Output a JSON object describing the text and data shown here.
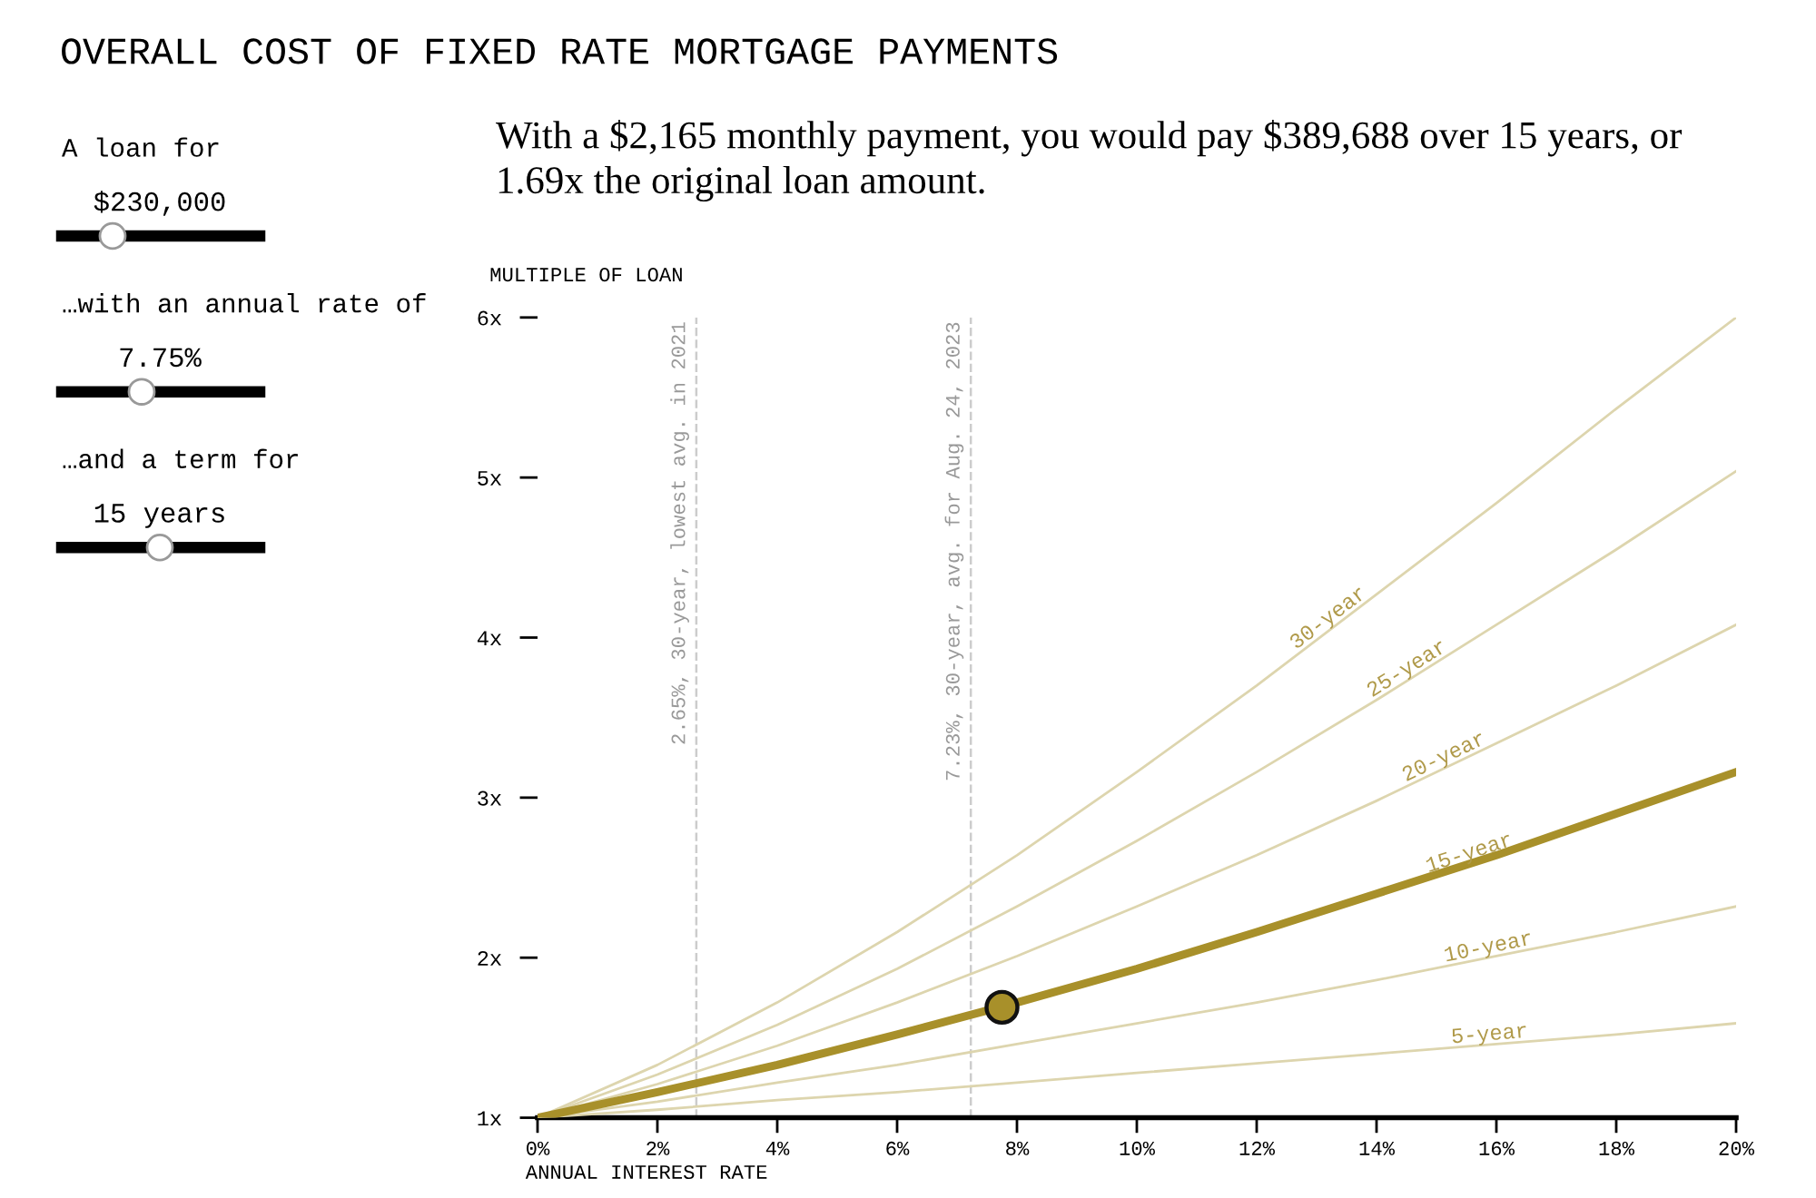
{
  "chart_data": {
    "type": "line",
    "title": "OVERALL COST OF FIXED RATE MORTGAGE PAYMENTS",
    "subtitle": "With a $2,165 monthly payment, you would pay $389,688 over 15 years, or 1.69x the original loan amount.",
    "annotations": [
      "A loan for",
      "$230,000",
      "…with an annual rate of",
      "7.75%",
      "…and a term for",
      "15 years"
    ],
    "xlabel": "ANNUAL INTEREST RATE",
    "ylabel": "MULTIPLE OF LOAN",
    "x": [
      0,
      2,
      4,
      6,
      8,
      10,
      12,
      14,
      16,
      18,
      20
    ],
    "series": [
      {
        "name": "30-year",
        "color": "#ddd5ae",
        "values": [
          1,
          1.33,
          1.72,
          2.16,
          2.64,
          3.16,
          3.7,
          4.27,
          4.84,
          5.43,
          6.0
        ]
      },
      {
        "name": "25-year",
        "color": "#ddd5ae",
        "values": [
          1,
          1.27,
          1.58,
          1.93,
          2.32,
          2.73,
          3.16,
          3.61,
          4.08,
          4.55,
          5.04
        ]
      },
      {
        "name": "20-year",
        "color": "#ddd5ae",
        "values": [
          1,
          1.21,
          1.45,
          1.72,
          2.01,
          2.32,
          2.64,
          2.98,
          3.34,
          3.7,
          4.08
        ]
      },
      {
        "name": "15-year",
        "color": "#a8902a",
        "values": [
          1,
          1.16,
          1.33,
          1.52,
          1.72,
          1.93,
          2.16,
          2.4,
          2.64,
          2.9,
          3.16
        ]
      },
      {
        "name": "10-year",
        "color": "#ddd5ae",
        "values": [
          1,
          1.1,
          1.22,
          1.33,
          1.46,
          1.59,
          1.72,
          1.86,
          2.01,
          2.16,
          2.32
        ]
      },
      {
        "name": "5-year",
        "color": "#ddd5ae",
        "values": [
          1,
          1.05,
          1.11,
          1.16,
          1.22,
          1.28,
          1.34,
          1.4,
          1.46,
          1.52,
          1.59
        ]
      },
      {
        "type": "scatter",
        "marker": "circle",
        "color": "#a8902a",
        "x": [
          7.75
        ],
        "values": [
          1.69
        ]
      }
    ],
    "ref_lines": [
      {
        "axis": "x",
        "value": 2.65,
        "label": "2.65%, 30-year, lowest avg. in 2021",
        "color": "#cccccc",
        "line_style": "dashed"
      },
      {
        "axis": "x",
        "value": 7.23,
        "label": "7.23%, 30-year, avg. for Aug. 24, 2023",
        "color": "#cccccc",
        "line_style": "dashed"
      }
    ],
    "xlim": [
      0,
      20
    ],
    "xticks": [
      {
        "value": 0,
        "label": "0%"
      },
      {
        "value": 2,
        "label": "2%"
      },
      {
        "value": 4,
        "label": "4%"
      },
      {
        "value": 6,
        "label": "6%"
      },
      {
        "value": 8,
        "label": "8%"
      },
      {
        "value": 10,
        "label": "10%"
      },
      {
        "value": 12,
        "label": "12%"
      },
      {
        "value": 14,
        "label": "14%"
      },
      {
        "value": 16,
        "label": "16%"
      },
      {
        "value": 18,
        "label": "18%"
      },
      {
        "value": 20,
        "label": "20%"
      }
    ],
    "ylim": [
      1,
      6
    ],
    "yticks": [
      {
        "value": 1,
        "label": "1x"
      },
      {
        "value": 2,
        "label": "2x"
      },
      {
        "value": 3,
        "label": "3x"
      },
      {
        "value": 4,
        "label": "4x"
      },
      {
        "value": 5,
        "label": "5x"
      },
      {
        "value": 6,
        "label": "6x"
      }
    ],
    "grid": false,
    "legend": false,
    "marker": "none",
    "line_style": "solid"
  }
}
